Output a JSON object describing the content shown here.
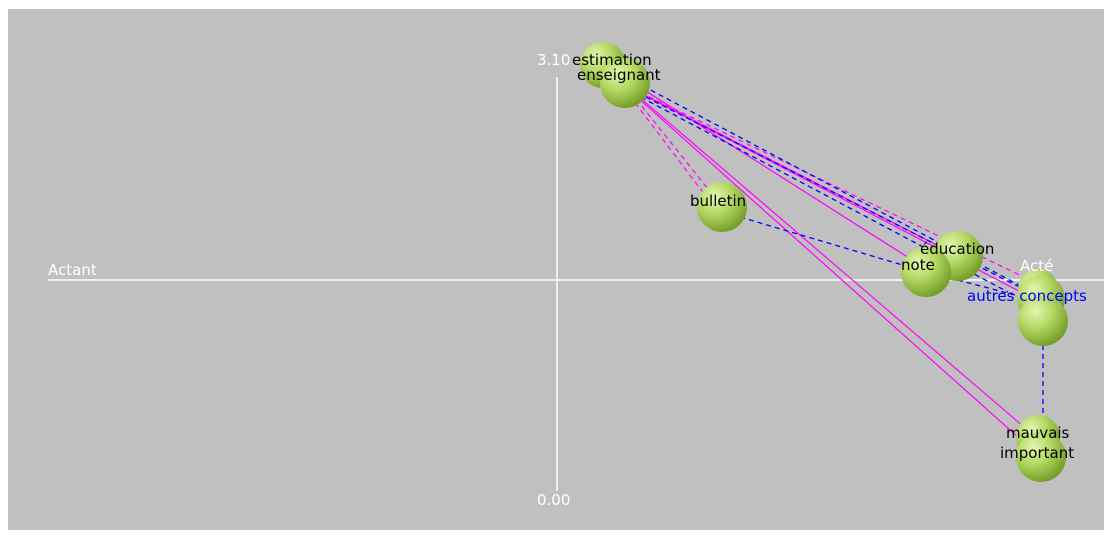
{
  "axes": {
    "left_label": "Actant",
    "right_label": "Acté",
    "y_top_value": "3.10",
    "y_bottom_value": "0.00"
  },
  "nodes": {
    "estimation": "estimation",
    "enseignant": "enseignant",
    "bulletin": "bulletin",
    "education": "éducation",
    "note": "note",
    "autres_concepts": "autres concepts",
    "mauvais": "mauvais",
    "important": "important"
  },
  "colors": {
    "background": "#c0c0c0",
    "axis": "#ffffff",
    "sphere": "#a6d05a",
    "link_solid": "#ff00ff",
    "link_dashed": "#0000ff"
  }
}
